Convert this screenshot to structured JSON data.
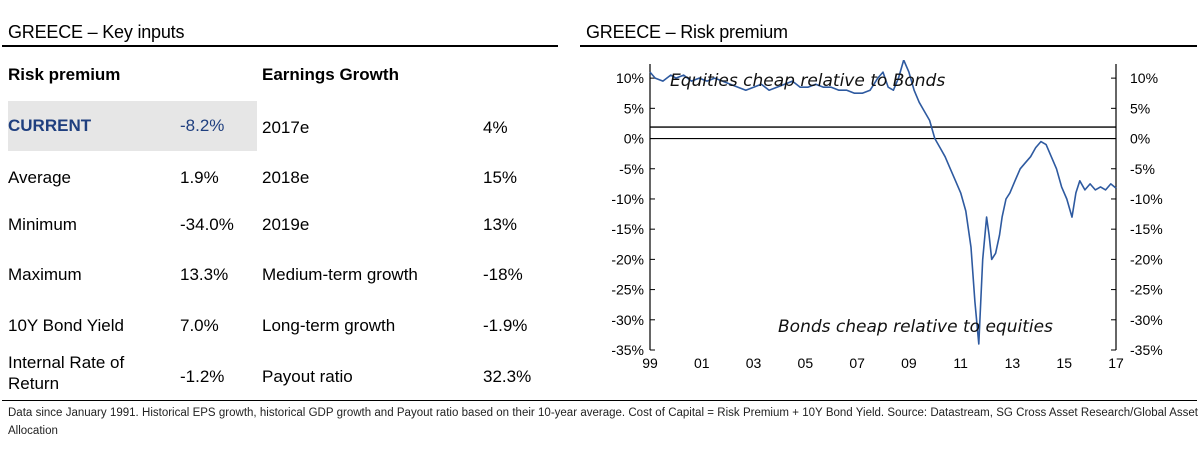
{
  "left_panel": {
    "title": "GREECE – Key inputs",
    "risk_header": "Risk premium",
    "growth_header": "Earnings Growth",
    "risk_rows": [
      {
        "label": "CURRENT",
        "value": "-8.2%"
      },
      {
        "label": "Average",
        "value": "1.9%"
      },
      {
        "label": "Minimum",
        "value": "-34.0%"
      },
      {
        "label": "Maximum",
        "value": "13.3%"
      },
      {
        "label": "10Y Bond Yield",
        "value": "7.0%"
      },
      {
        "label": "Internal Rate of Return",
        "value": "-1.2%"
      }
    ],
    "growth_rows": [
      {
        "label": "2017e",
        "value": "4%"
      },
      {
        "label": "2018e",
        "value": "15%"
      },
      {
        "label": "2019e",
        "value": "13%"
      },
      {
        "label": "Medium-term growth",
        "value": "-18%"
      },
      {
        "label": "Long-term growth",
        "value": "-1.9%"
      },
      {
        "label": "Payout ratio",
        "value": "32.3%"
      }
    ],
    "highlight_color": "#1f3f7f"
  },
  "footnote": "Data since January 1991. Historical EPS growth, historical GDP growth and Payout ratio based on their 10-year average. Cost of Capital = Risk Premium + 10Y Bond Yield. Source: Datastream, SG Cross Asset Research/Global Asset Allocation",
  "chart_data": {
    "type": "line",
    "title": "GREECE – Risk premium",
    "x_tick_labels": [
      "99",
      "01",
      "03",
      "05",
      "07",
      "09",
      "11",
      "13",
      "15",
      "17"
    ],
    "x_ticks": [
      1999,
      2001,
      2003,
      2005,
      2007,
      2009,
      2011,
      2013,
      2015,
      2017
    ],
    "xlim": [
      1999,
      2017
    ],
    "ylim": [
      -35,
      13
    ],
    "y_ticks": [
      10,
      5,
      0,
      -5,
      -10,
      -15,
      -20,
      -25,
      -30,
      -35
    ],
    "y_tick_labels_left": [
      "10%",
      "5%",
      "0%",
      "-5%",
      "-10%",
      "-15%",
      "-20%",
      "-25%",
      "-30%",
      "-35%"
    ],
    "y_tick_labels_right": [
      "10%",
      "5%",
      "0%",
      "-5%",
      "-10%",
      "-15%",
      "-20%",
      "-25%",
      "-30%",
      "-35%"
    ],
    "reference_line": 1.9,
    "annotations": [
      "Equities cheap relative to Bonds",
      "Bonds cheap relative to equities"
    ],
    "line_color": "#2e5aa0",
    "series": [
      {
        "x": [
          1999.0,
          1999.2,
          1999.5,
          1999.8,
          2000.0,
          2000.3,
          2000.6,
          2000.9,
          2001.2,
          2001.5,
          2001.8,
          2002.1,
          2002.4,
          2002.7,
          2003.0,
          2003.3,
          2003.6,
          2003.9,
          2004.2,
          2004.5,
          2004.8,
          2005.1,
          2005.4,
          2005.7,
          2006.0,
          2006.3,
          2006.6,
          2006.9,
          2007.2,
          2007.5,
          2007.8,
          2008.0,
          2008.2,
          2008.4,
          2008.6,
          2008.8,
          2009.0,
          2009.2,
          2009.4,
          2009.6,
          2009.8,
          2010.0,
          2010.2,
          2010.4,
          2010.6,
          2010.8,
          2011.0,
          2011.2,
          2011.4,
          2011.55,
          2011.7,
          2011.85,
          2012.0,
          2012.1,
          2012.2,
          2012.35,
          2012.5,
          2012.6,
          2012.75,
          2012.9,
          2013.1,
          2013.3,
          2013.5,
          2013.7,
          2013.9,
          2014.1,
          2014.3,
          2014.5,
          2014.7,
          2014.9,
          2015.1,
          2015.3,
          2015.45,
          2015.6,
          2015.8,
          2016.0,
          2016.2,
          2016.4,
          2016.6,
          2016.8,
          2017.0
        ],
        "y": [
          11.0,
          10.0,
          9.5,
          10.5,
          10.0,
          10.5,
          9.5,
          10.0,
          9.5,
          10.0,
          9.5,
          9.0,
          8.5,
          8.0,
          8.5,
          9.0,
          8.0,
          8.5,
          9.0,
          9.5,
          8.5,
          8.5,
          9.0,
          8.5,
          8.5,
          8.0,
          8.0,
          7.5,
          7.5,
          8.0,
          10.0,
          11.0,
          8.5,
          8.0,
          10.0,
          13.0,
          11.0,
          8.0,
          6.0,
          4.5,
          3.0,
          0.0,
          -1.5,
          -3.0,
          -5.0,
          -7.0,
          -9.0,
          -12.0,
          -18.0,
          -27.0,
          -34.0,
          -20.0,
          -13.0,
          -16.0,
          -20.0,
          -19.0,
          -16.0,
          -13.0,
          -10.0,
          -9.0,
          -7.0,
          -5.0,
          -4.0,
          -3.0,
          -1.5,
          -0.5,
          -1.0,
          -3.0,
          -5.0,
          -8.0,
          -10.0,
          -13.0,
          -9.0,
          -7.0,
          -8.5,
          -7.5,
          -8.5,
          -8.0,
          -8.5,
          -7.5,
          -8.2
        ]
      }
    ]
  }
}
